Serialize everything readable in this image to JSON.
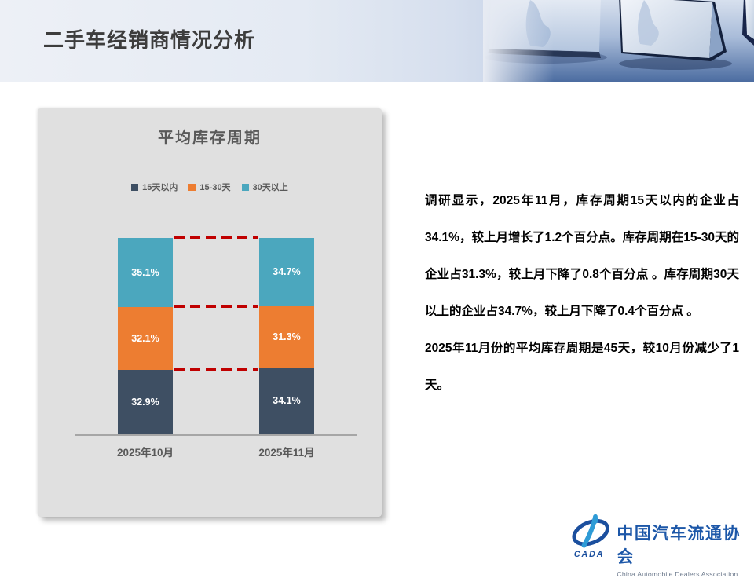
{
  "header": {
    "title": "二手车经销商情况分析"
  },
  "chart_card": {
    "title": "平均库存周期",
    "legend": [
      {
        "label": "15天以内",
        "color": "#3E4F63"
      },
      {
        "label": "15-30天",
        "color": "#ED7D31"
      },
      {
        "label": "30天以上",
        "color": "#4BA7BE"
      }
    ]
  },
  "chart_data": {
    "type": "bar",
    "stacked": true,
    "title": "平均库存周期",
    "categories": [
      "2025年10月",
      "2025年11月"
    ],
    "series": [
      {
        "name": "15天以内",
        "color": "#3E4F63",
        "values": [
          32.9,
          34.1
        ]
      },
      {
        "name": "15-30天",
        "color": "#ED7D31",
        "values": [
          32.1,
          31.3
        ]
      },
      {
        "name": "30天以上",
        "color": "#4BA7BE",
        "values": [
          35.1,
          34.7
        ]
      }
    ],
    "value_suffix": "%",
    "ylim": [
      0,
      100
    ],
    "grid": false,
    "legend_position": "top",
    "connector_color": "#C00000",
    "axis_color": "#A6A6A6"
  },
  "analysis": {
    "paragraph1": "调研显示，2025年11月，库存周期15天以内的企业占34.1%，较上月增长了1.2个百分点。库存周期在15-30天的企业占31.3%，较上月下降了0.8个百分点 。库存周期30天以上的企业占34.7%，较上月下降了0.4个百分点 。",
    "paragraph2": "2025年11月份的平均库存周期是45天，较10月份减少了1天。"
  },
  "logo": {
    "acronym": "CADA",
    "name_zh": "中国汽车流通协会",
    "name_en": "China Automobile Dealers Association",
    "brand_color": "#1B4F9E"
  }
}
